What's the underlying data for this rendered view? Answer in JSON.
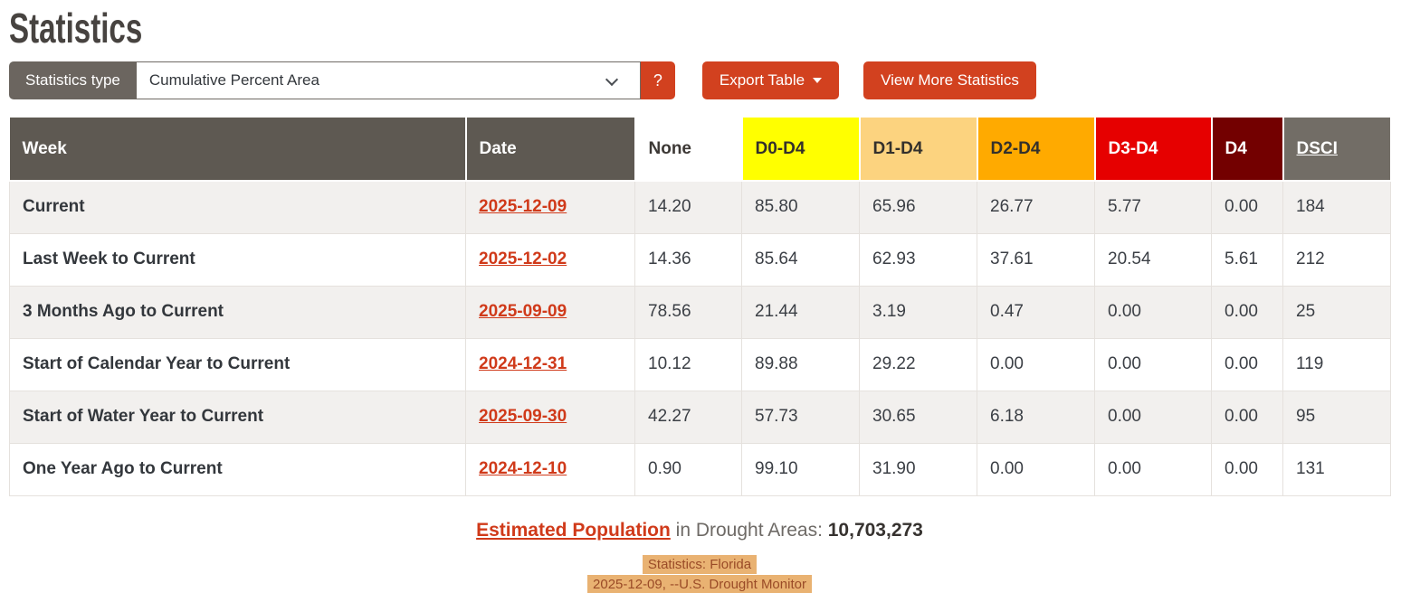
{
  "page": {
    "title": "Statistics"
  },
  "toolbar": {
    "type_label": "Statistics type",
    "type_value": "Cumulative Percent Area",
    "help_label": "?",
    "export_label": "Export Table",
    "view_more_label": "View More Statistics"
  },
  "table": {
    "columns": [
      {
        "key": "week",
        "label": "Week"
      },
      {
        "key": "date",
        "label": "Date"
      },
      {
        "key": "none",
        "label": "None"
      },
      {
        "key": "d0",
        "label": "D0-D4"
      },
      {
        "key": "d1",
        "label": "D1-D4"
      },
      {
        "key": "d2",
        "label": "D2-D4"
      },
      {
        "key": "d3",
        "label": "D3-D4"
      },
      {
        "key": "d4",
        "label": "D4"
      },
      {
        "key": "dsci",
        "label": "DSCI"
      }
    ],
    "rows": [
      {
        "week": "Current",
        "date": "2025-12-09",
        "none": "14.20",
        "d0": "85.80",
        "d1": "65.96",
        "d2": "26.77",
        "d3": "5.77",
        "d4": "0.00",
        "dsci": "184"
      },
      {
        "week": "Last Week to Current",
        "date": "2025-12-02",
        "none": "14.36",
        "d0": "85.64",
        "d1": "62.93",
        "d2": "37.61",
        "d3": "20.54",
        "d4": "5.61",
        "dsci": "212"
      },
      {
        "week": "3 Months Ago to Current",
        "date": "2025-09-09",
        "none": "78.56",
        "d0": "21.44",
        "d1": "3.19",
        "d2": "0.47",
        "d3": "0.00",
        "d4": "0.00",
        "dsci": "25"
      },
      {
        "week": "Start of Calendar Year to Current",
        "date": "2024-12-31",
        "none": "10.12",
        "d0": "89.88",
        "d1": "29.22",
        "d2": "0.00",
        "d3": "0.00",
        "d4": "0.00",
        "dsci": "119"
      },
      {
        "week": "Start of Water Year to Current",
        "date": "2025-09-30",
        "none": "42.27",
        "d0": "57.73",
        "d1": "30.65",
        "d2": "6.18",
        "d3": "0.00",
        "d4": "0.00",
        "dsci": "95"
      },
      {
        "week": "One Year Ago to Current",
        "date": "2024-12-10",
        "none": "0.90",
        "d0": "99.10",
        "d1": "31.90",
        "d2": "0.00",
        "d3": "0.00",
        "d4": "0.00",
        "dsci": "131"
      }
    ]
  },
  "footer": {
    "population_link": "Estimated Population",
    "population_mid": " in Drought Areas: ",
    "population_value": "10,703,273",
    "caption_line1": "Statistics: Florida",
    "caption_line2": "2025-12-09, --U.S. Drought Monitor"
  },
  "colors": {
    "accent_button": "#d2411f",
    "link": "#d03a1a",
    "header_gray": "#5e5952",
    "dsci_header_gray": "#726d66",
    "type_label_gray": "#6b655f",
    "d0_yellow": "#ffff00",
    "d1_tan": "#fcd37f",
    "d2_orange": "#ffaa00",
    "d3_red": "#e60000",
    "d4_darkred": "#730000",
    "row_stripe": "#f2f0ee",
    "caption_highlight_bg": "#e9b272",
    "caption_highlight_text": "#9a4b27"
  }
}
